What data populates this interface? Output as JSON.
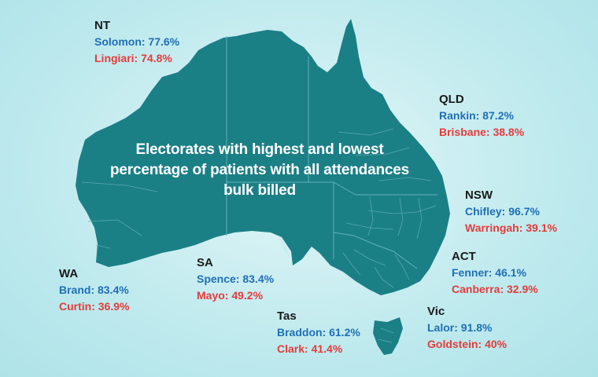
{
  "title": "Electorates with highest and lowest percentage of patients with all attendances bulk billed",
  "colors": {
    "land": "#1b7f86",
    "border": "#5fb3b8",
    "high": "#1f6fb5",
    "low": "#e43b3b",
    "state_name": "#1a1a1a"
  },
  "regions": {
    "nt": {
      "state": "NT",
      "high": "Solomon: 77.6%",
      "low": "Lingiari: 74.8%"
    },
    "qld": {
      "state": "QLD",
      "high": "Rankin: 87.2%",
      "low": "Brisbane: 38.8%"
    },
    "nsw": {
      "state": "NSW",
      "high": "Chifley: 96.7%",
      "low": "Warringah: 39.1%"
    },
    "act": {
      "state": "ACT",
      "high": "Fenner: 46.1%",
      "low": "Canberra: 32.9%"
    },
    "wa": {
      "state": "WA",
      "high": "Brand: 83.4%",
      "low": "Curtin: 36.9%"
    },
    "sa": {
      "state": "SA",
      "high": "Spence: 83.4%",
      "low": "Mayo: 49.2%"
    },
    "tas": {
      "state": "Tas",
      "high": "Braddon: 61.2%",
      "low": "Clark: 41.4%"
    },
    "vic": {
      "state": "Vic",
      "high": "Lalor: 91.8%",
      "low": "Goldstein: 40%"
    }
  }
}
